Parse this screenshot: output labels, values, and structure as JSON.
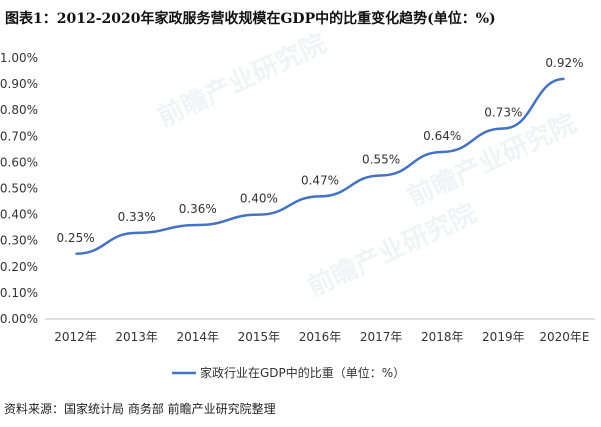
{
  "title": "图表1：2012-2020年家政服务营收规模在GDP中的比重变化趋势(单位：%)",
  "source": "资料来源：国家统计局 商务部 前瞻产业研究院整理",
  "watermark": "前瞻产业研究院",
  "chart_data": {
    "type": "line",
    "categories": [
      "2012年",
      "2013年",
      "2014年",
      "2015年",
      "2016年",
      "2017年",
      "2018年",
      "2019年",
      "2020年E"
    ],
    "series": [
      {
        "name": "家政行业在GDP中的比重（单位：%）",
        "values": [
          0.25,
          0.33,
          0.36,
          0.4,
          0.47,
          0.55,
          0.64,
          0.73,
          0.92
        ],
        "labels": [
          "0.25%",
          "0.33%",
          "0.36%",
          "0.40%",
          "0.47%",
          "0.55%",
          "0.64%",
          "0.73%",
          "0.92%"
        ],
        "color": "#4472c4"
      }
    ],
    "ylim": [
      0,
      1.0
    ],
    "yticks": [
      "0.00%",
      "0.10%",
      "0.20%",
      "0.30%",
      "0.40%",
      "0.50%",
      "0.60%",
      "0.70%",
      "0.80%",
      "0.90%",
      "1.00%"
    ],
    "grid": false,
    "legend": "bottom-center"
  }
}
